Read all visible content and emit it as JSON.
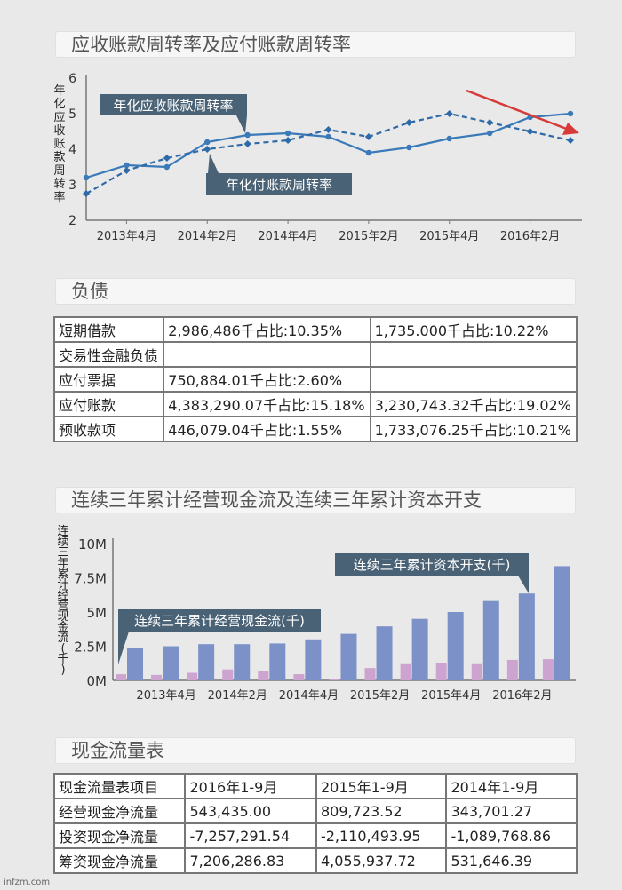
{
  "page": {
    "footer_source": "infzm.com"
  },
  "colors": {
    "solid_line": "#3a7ab8",
    "dashed_line": "#2f6aa8",
    "bar_blue": "#7b91c8",
    "bar_pink": "#cda3cf",
    "callout": "#4a6276",
    "arrow": "#d83a3a"
  },
  "section1": {
    "title": "应收账款周转率及应付账款周转率"
  },
  "section2": {
    "title": "负债"
  },
  "section3": {
    "title": "连续三年累计经营现金流及连续三年累计资本开支"
  },
  "section4": {
    "title": "现金流量表"
  },
  "chart_data": [
    {
      "type": "line",
      "title": "应收账款周转率及应付账款周转率",
      "ylabel": "年化应收账款周转率",
      "ylim": [
        2,
        6
      ],
      "yticks": [
        "2",
        "3",
        "4",
        "5",
        "6"
      ],
      "xtick_labels": [
        "2013年4月",
        "2014年2月",
        "2014年4月",
        "2015年2月",
        "2015年4月",
        "2016年2月"
      ],
      "series": [
        {
          "name": "年化应收账款周转率",
          "style": "solid",
          "values": [
            3.2,
            3.55,
            3.5,
            4.2,
            4.4,
            4.45,
            4.35,
            3.9,
            4.05,
            4.3,
            4.45,
            4.9,
            5.0
          ]
        },
        {
          "name": "年化付账款周转率",
          "style": "dashed",
          "values": [
            2.75,
            3.4,
            3.75,
            4.0,
            4.15,
            4.25,
            4.55,
            4.35,
            4.75,
            5.0,
            4.75,
            4.5,
            4.25
          ]
        }
      ]
    },
    {
      "type": "bar",
      "title": "连续三年累计经营现金流及连续三年累计资本开支",
      "ylabel": "连续三年累计经营现金流(千)",
      "ylim": [
        0,
        10000000
      ],
      "yticks": [
        "0M",
        "2.5M",
        "5M",
        "7.5M",
        "10M"
      ],
      "xtick_labels": [
        "2013年4月",
        "2014年2月",
        "2014年4月",
        "2015年2月",
        "2015年4月",
        "2016年2月"
      ],
      "series": [
        {
          "name": "连续三年累计经营现金流(千)",
          "values": [
            450000,
            400000,
            550000,
            800000,
            650000,
            450000,
            100000,
            900000,
            1250000,
            1300000,
            1250000,
            1500000,
            1550000
          ]
        },
        {
          "name": "连续三年累计资本开支(千)",
          "values": [
            2400000,
            2500000,
            2650000,
            2650000,
            2700000,
            3000000,
            3400000,
            3950000,
            4500000,
            5000000,
            5800000,
            6350000,
            8350000
          ]
        }
      ]
    }
  ],
  "liabilities": {
    "rows": [
      [
        "短期借款",
        "2,986,486千占比:10.35%",
        "1,735.000千占比:10.22%"
      ],
      [
        "交易性金融负债",
        "",
        ""
      ],
      [
        "应付票据",
        "750,884.01千占比:2.60%",
        ""
      ],
      [
        "应付账款",
        "4,383,290.07千占比:15.18%",
        "3,230,743.32千占比:19.02%"
      ],
      [
        "预收款项",
        "446,079.04千占比:1.55%",
        "1,733,076.25千占比:10.21%"
      ]
    ]
  },
  "cashflow": {
    "header": [
      "现金流量表项目",
      "2016年1-9月",
      "2015年1-9月",
      "2014年1-9月"
    ],
    "rows": [
      [
        "经营现金净流量",
        "543,435.00",
        "809,723.52",
        "343,701.27"
      ],
      [
        "投资现金净流量",
        "-7,257,291.54",
        "-2,110,493.95",
        "-1,089,768.86"
      ],
      [
        "筹资现金净流量",
        "7,206,286.83",
        "4,055,937.72",
        "531,646.39"
      ]
    ]
  }
}
